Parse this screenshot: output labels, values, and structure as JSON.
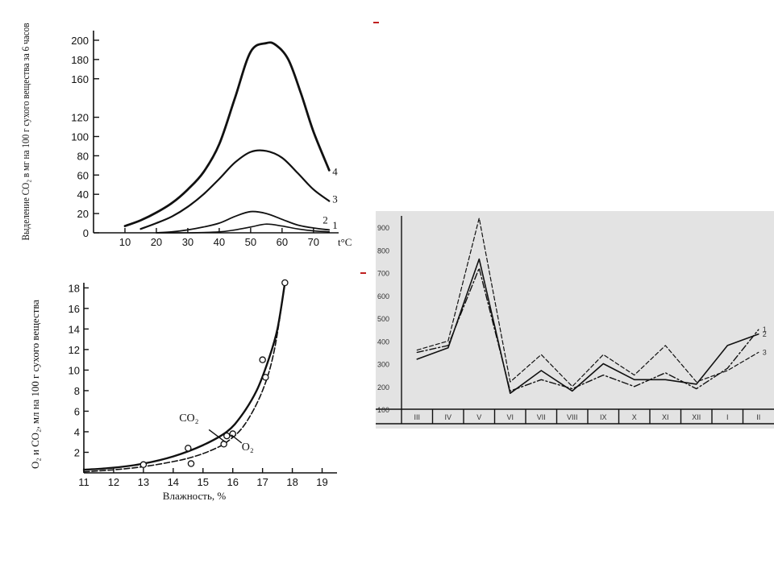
{
  "chart_data": [
    {
      "type": "line",
      "xlabel": "t°C",
      "ylabel": "Выделение CO₂ в мг на 100 г сухого вещества за 6 часов",
      "xlim": [
        0,
        78
      ],
      "ylim": [
        0,
        210
      ],
      "x_ticks": [
        10,
        20,
        30,
        40,
        50,
        60,
        70
      ],
      "y_ticks": [
        0,
        20,
        40,
        60,
        80,
        100,
        120,
        160,
        180,
        200
      ],
      "series": [
        {
          "name": "1",
          "x": [
            20,
            30,
            40,
            45,
            50,
            55,
            60,
            65,
            70,
            75
          ],
          "y": [
            0,
            0,
            1,
            3,
            6,
            9,
            7,
            4,
            2,
            1
          ]
        },
        {
          "name": "2",
          "x": [
            20,
            25,
            30,
            35,
            40,
            45,
            50,
            55,
            60,
            65,
            70,
            75
          ],
          "y": [
            0,
            1,
            3,
            6,
            10,
            17,
            22,
            20,
            14,
            8,
            5,
            3
          ]
        },
        {
          "name": "3",
          "x": [
            15,
            20,
            25,
            30,
            35,
            40,
            45,
            50,
            55,
            60,
            65,
            70,
            75
          ],
          "y": [
            4,
            10,
            17,
            27,
            40,
            56,
            73,
            84,
            85,
            78,
            62,
            45,
            33
          ]
        },
        {
          "name": "4",
          "x": [
            10,
            15,
            20,
            25,
            30,
            35,
            40,
            45,
            50,
            55,
            58,
            62,
            66,
            70,
            75
          ],
          "y": [
            7,
            13,
            21,
            31,
            45,
            63,
            92,
            140,
            188,
            197,
            195,
            180,
            145,
            105,
            65
          ]
        }
      ]
    },
    {
      "type": "line",
      "xlabel": "Влажность, %",
      "ylabel": "O₂ и CO₂, мл на 100 г сухого вещества",
      "xlim": [
        11,
        19.5
      ],
      "ylim": [
        0,
        18.5
      ],
      "x_ticks": [
        11,
        12,
        13,
        14,
        15,
        16,
        17,
        18,
        19
      ],
      "y_ticks": [
        2,
        4,
        6,
        8,
        10,
        12,
        14,
        16,
        18
      ],
      "series": [
        {
          "name": "CO₂",
          "x": [
            11,
            12,
            13,
            14,
            15,
            15.8,
            16.3,
            16.8,
            17.2,
            17.5,
            17.75
          ],
          "y": [
            0.3,
            0.5,
            0.9,
            1.6,
            2.7,
            4.0,
            5.6,
            8.0,
            11.0,
            14.0,
            18.5
          ]
        },
        {
          "name": "O₂",
          "x": [
            11,
            12,
            13,
            14,
            14.6,
            15.2,
            15.8,
            16.4,
            17.0,
            17.4,
            17.75
          ],
          "y": [
            0.1,
            0.3,
            0.6,
            1.1,
            1.5,
            2.1,
            3.0,
            4.7,
            8.0,
            12.0,
            18.5
          ]
        }
      ],
      "annotations": [
        "CO₂",
        "O₂"
      ]
    },
    {
      "type": "line",
      "categories": [
        "III",
        "IV",
        "V",
        "VI",
        "VII",
        "VIII",
        "IX",
        "X",
        "XI",
        "XII",
        "I",
        "II"
      ],
      "ylim": [
        100,
        950
      ],
      "y_ticks": [
        100,
        200,
        300,
        400,
        500,
        600,
        700,
        800,
        900
      ],
      "series": [
        {
          "name": "1",
          "values": [
            350,
            380,
            720,
            180,
            230,
            190,
            250,
            200,
            260,
            190,
            280,
            450
          ]
        },
        {
          "name": "2",
          "values": [
            320,
            370,
            760,
            170,
            270,
            180,
            300,
            230,
            230,
            210,
            380,
            430
          ]
        },
        {
          "name": "3",
          "values": [
            360,
            400,
            940,
            220,
            340,
            200,
            340,
            250,
            380,
            220,
            270,
            350
          ]
        }
      ]
    }
  ]
}
